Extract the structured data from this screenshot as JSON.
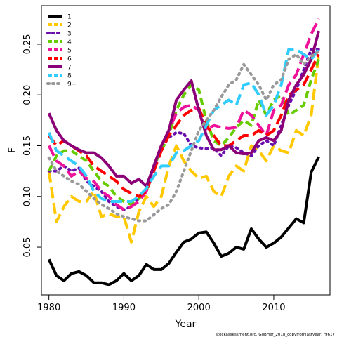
{
  "chart_data": {
    "type": "line",
    "xlabel": "Year",
    "ylabel": "F",
    "xlim": [
      1979,
      2017.5
    ],
    "ylim": [
      0.003,
      0.288
    ],
    "xticks": [
      1980,
      1990,
      2000,
      2010
    ],
    "yticks": [
      0.05,
      0.1,
      0.15,
      0.2,
      0.25
    ],
    "ytick_labels": [
      "0.05",
      "0.10",
      "0.15",
      "0.20",
      "0.25"
    ],
    "legend_position": "top-left",
    "credit": "stockassessment.org, GoBHer_2018_copyfromlastyear, r9617",
    "x": [
      1980,
      1981,
      1982,
      1983,
      1984,
      1985,
      1986,
      1987,
      1988,
      1989,
      1990,
      1991,
      1992,
      1993,
      1994,
      1995,
      1996,
      1997,
      1998,
      1999,
      2000,
      2001,
      2002,
      2003,
      2004,
      2005,
      2006,
      2007,
      2008,
      2009,
      2010,
      2011,
      2012,
      2013,
      2014,
      2015,
      2016
    ],
    "series": [
      {
        "name": "1",
        "color": "#000000",
        "dash": "solid",
        "values": [
          0.038,
          0.022,
          0.017,
          0.024,
          0.026,
          0.022,
          0.015,
          0.015,
          0.013,
          0.017,
          0.024,
          0.017,
          0.022,
          0.033,
          0.028,
          0.028,
          0.034,
          0.045,
          0.055,
          0.058,
          0.064,
          0.065,
          0.054,
          0.041,
          0.044,
          0.05,
          0.048,
          0.068,
          0.058,
          0.05,
          0.054,
          0.06,
          0.069,
          0.078,
          0.074,
          0.124,
          0.139
        ]
      },
      {
        "name": "2",
        "color": "#FFC800",
        "dash": "longdash",
        "values": [
          0.125,
          0.075,
          0.09,
          0.1,
          0.095,
          0.095,
          0.105,
          0.08,
          0.083,
          0.08,
          0.08,
          0.055,
          0.085,
          0.1,
          0.09,
          0.1,
          0.13,
          0.15,
          0.135,
          0.125,
          0.118,
          0.12,
          0.105,
          0.1,
          0.12,
          0.13,
          0.125,
          0.15,
          0.145,
          0.135,
          0.15,
          0.145,
          0.143,
          0.165,
          0.16,
          0.18,
          0.24
        ]
      },
      {
        "name": "3",
        "color": "#6A0DAD",
        "dash": "dotted",
        "values": [
          0.125,
          0.125,
          0.13,
          0.125,
          0.128,
          0.115,
          0.11,
          0.105,
          0.095,
          0.09,
          0.087,
          0.09,
          0.098,
          0.108,
          0.128,
          0.148,
          0.158,
          0.163,
          0.162,
          0.15,
          0.148,
          0.147,
          0.148,
          0.14,
          0.15,
          0.148,
          0.143,
          0.14,
          0.15,
          0.155,
          0.15,
          0.17,
          0.19,
          0.205,
          0.225,
          0.245,
          0.245
        ]
      },
      {
        "name": "4",
        "color": "#66CC00",
        "dash": "dashed",
        "values": [
          0.125,
          0.14,
          0.145,
          0.145,
          0.14,
          0.135,
          0.125,
          0.115,
          0.11,
          0.1,
          0.095,
          0.092,
          0.098,
          0.105,
          0.13,
          0.145,
          0.16,
          0.185,
          0.2,
          0.21,
          0.205,
          0.175,
          0.155,
          0.15,
          0.158,
          0.168,
          0.175,
          0.17,
          0.195,
          0.18,
          0.195,
          0.2,
          0.18,
          0.185,
          0.19,
          0.215,
          0.235
        ]
      },
      {
        "name": "5",
        "color": "#EE1199",
        "dash": "longdash",
        "values": [
          0.15,
          0.135,
          0.13,
          0.12,
          0.125,
          0.118,
          0.115,
          0.105,
          0.1,
          0.092,
          0.087,
          0.09,
          0.095,
          0.105,
          0.13,
          0.15,
          0.165,
          0.182,
          0.188,
          0.19,
          0.185,
          0.165,
          0.17,
          0.168,
          0.167,
          0.168,
          0.185,
          0.18,
          0.17,
          0.16,
          0.185,
          0.19,
          0.21,
          0.22,
          0.24,
          0.26,
          0.275
        ]
      },
      {
        "name": "6",
        "color": "#FF0000",
        "dash": "longdash",
        "values": [
          0.16,
          0.15,
          0.155,
          0.15,
          0.145,
          0.14,
          0.13,
          0.125,
          0.12,
          0.115,
          0.107,
          0.103,
          0.1,
          0.105,
          0.125,
          0.145,
          0.16,
          0.17,
          0.18,
          0.185,
          0.187,
          0.17,
          0.16,
          0.15,
          0.15,
          0.155,
          0.16,
          0.16,
          0.165,
          0.16,
          0.165,
          0.18,
          0.2,
          0.205,
          0.21,
          0.225,
          0.24
        ]
      },
      {
        "name": "7",
        "color": "#8B0077",
        "dash": "solid",
        "values": [
          0.182,
          0.165,
          0.155,
          0.15,
          0.146,
          0.143,
          0.143,
          0.138,
          0.13,
          0.12,
          0.12,
          0.113,
          0.117,
          0.11,
          0.13,
          0.15,
          0.165,
          0.195,
          0.205,
          0.214,
          0.185,
          0.16,
          0.146,
          0.146,
          0.15,
          0.143,
          0.142,
          0.143,
          0.155,
          0.158,
          0.155,
          0.165,
          0.195,
          0.21,
          0.22,
          0.235,
          0.263
        ]
      },
      {
        "name": "8",
        "color": "#33CCFF",
        "dash": "longdash",
        "values": [
          0.163,
          0.145,
          0.14,
          0.135,
          0.13,
          0.12,
          0.105,
          0.098,
          0.095,
          0.095,
          0.095,
          0.095,
          0.1,
          0.108,
          0.12,
          0.13,
          0.13,
          0.143,
          0.145,
          0.15,
          0.155,
          0.17,
          0.185,
          0.19,
          0.195,
          0.19,
          0.21,
          0.212,
          0.2,
          0.18,
          0.19,
          0.21,
          0.245,
          0.245,
          0.24,
          0.235,
          0.245
        ]
      },
      {
        "name": "9+",
        "color": "#999999",
        "dash": "dotted",
        "values": [
          0.138,
          0.125,
          0.12,
          0.115,
          0.112,
          0.105,
          0.098,
          0.092,
          0.088,
          0.083,
          0.08,
          0.078,
          0.076,
          0.076,
          0.082,
          0.088,
          0.092,
          0.105,
          0.125,
          0.145,
          0.165,
          0.175,
          0.185,
          0.198,
          0.21,
          0.215,
          0.23,
          0.22,
          0.21,
          0.195,
          0.21,
          0.215,
          0.235,
          0.24,
          0.23,
          0.238,
          0.243
        ]
      }
    ]
  }
}
